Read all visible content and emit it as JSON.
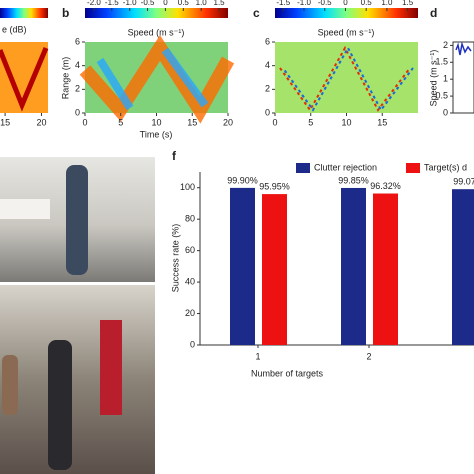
{
  "panels": {
    "a": {
      "colorbar_label": "e (dB)",
      "xticks": [
        15,
        20
      ],
      "xlim": [
        14.3,
        20.9
      ]
    },
    "b": {
      "label": "b",
      "colorbar_ticks": [
        {
          "value": -2,
          "label": "-2.0"
        },
        -1.5,
        {
          "value": -1,
          "label": "-1.0"
        },
        -0.5,
        0,
        0.5,
        {
          "value": 1,
          "label": "1.0"
        },
        1.5
      ],
      "colorbar_lim": [
        -2.25,
        1.75
      ],
      "colorbar_label": "Speed (m s⁻¹)",
      "ylabel": "Range (m)",
      "yticks": [
        0,
        2,
        4,
        6
      ],
      "ylim": [
        0,
        6
      ],
      "xticks": [
        0,
        5,
        10,
        15,
        20
      ],
      "xlim": [
        0,
        20
      ],
      "xlabel": "Time (s)"
    },
    "c": {
      "label": "c",
      "colorbar_ticks": [
        -1.5,
        {
          "value": -1,
          "label": "-1.0"
        },
        -0.5,
        0,
        0.5,
        {
          "value": 1,
          "label": "1.0"
        },
        1.5
      ],
      "colorbar_lim": [
        -1.7,
        1.75
      ],
      "colorbar_label": "Speed (m s⁻¹)",
      "yticks": [
        0,
        2,
        4,
        6
      ],
      "ylim": [
        0,
        6
      ],
      "xticks": [
        0,
        5,
        10,
        15
      ],
      "xlim": [
        0,
        20
      ]
    },
    "d": {
      "label": "d",
      "ylabel": "Speed (m s⁻¹)",
      "yticks": [
        0,
        0.5,
        1,
        1.5,
        2
      ],
      "ylim": [
        0,
        2.1
      ]
    }
  },
  "chart_data": {
    "type": "bar",
    "label": "f",
    "ylabel": "Success rate (%)",
    "xlabel": "Number of targets",
    "categories": [
      "1",
      "2",
      null
    ],
    "series": [
      {
        "name": "Clutter rejection",
        "color": "#1c2a8a",
        "values": [
          99.9,
          99.85,
          99.07
        ],
        "value_labels": [
          "99.90%",
          "99.85%",
          "99.07"
        ]
      },
      {
        "name": "Target(s) d",
        "color": "#ee1111",
        "values": [
          95.95,
          96.32,
          null
        ],
        "value_labels": [
          "95.95%",
          "96.32%",
          null
        ]
      }
    ],
    "ylim": [
      0,
      110
    ],
    "yticks": [
      0,
      20,
      40,
      60,
      80,
      100
    ]
  }
}
